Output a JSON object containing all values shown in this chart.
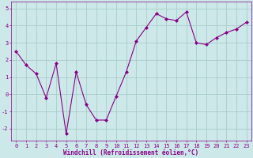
{
  "x": [
    0,
    1,
    2,
    3,
    4,
    5,
    6,
    7,
    8,
    9,
    10,
    11,
    12,
    13,
    14,
    15,
    16,
    17,
    18,
    19,
    20,
    21,
    22,
    23
  ],
  "y": [
    2.5,
    1.7,
    1.2,
    -0.2,
    1.8,
    -2.3,
    1.3,
    -0.6,
    -1.5,
    -1.5,
    -0.1,
    1.3,
    3.1,
    3.9,
    4.7,
    4.4,
    4.3,
    4.8,
    3.0,
    2.9,
    3.3,
    3.6,
    3.8,
    4.2
  ],
  "line_color": "#880088",
  "marker": "D",
  "marker_size": 2.0,
  "bg_color": "#cce8e8",
  "grid_color": "#aacccc",
  "xlabel": "Windchill (Refroidissement éolien,°C)",
  "tick_color": "#880088",
  "xlim": [
    -0.5,
    23.5
  ],
  "ylim": [
    -2.7,
    5.4
  ],
  "yticks": [
    -2,
    -1,
    0,
    1,
    2,
    3,
    4,
    5
  ],
  "xticks": [
    0,
    1,
    2,
    3,
    4,
    5,
    6,
    7,
    8,
    9,
    10,
    11,
    12,
    13,
    14,
    15,
    16,
    17,
    18,
    19,
    20,
    21,
    22,
    23
  ],
  "tick_fontsize": 5.0,
  "xlabel_fontsize": 5.5
}
